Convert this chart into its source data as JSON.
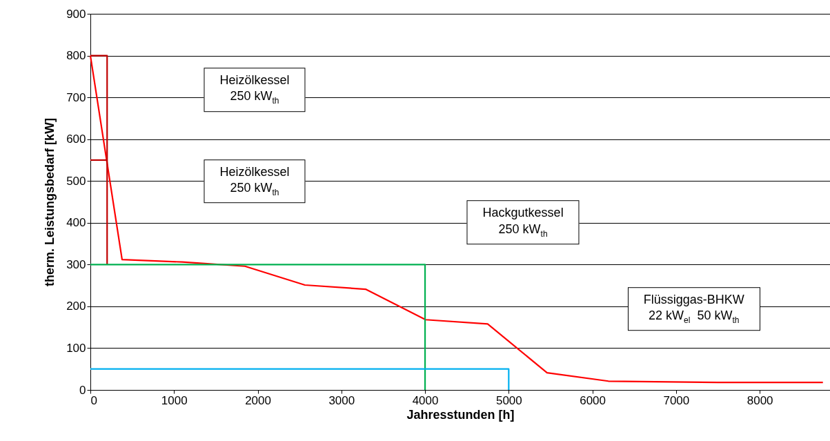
{
  "chart_data": {
    "type": "line",
    "xlabel": "Jahresstunden [h]",
    "ylabel": "therm. Leistungsbedarf [kW]",
    "xlim": [
      0,
      8840
    ],
    "ylim": [
      0,
      900
    ],
    "xticks": [
      0,
      1000,
      2000,
      3000,
      4000,
      5000,
      6000,
      7000,
      8000
    ],
    "yticks": [
      0,
      100,
      200,
      300,
      400,
      500,
      600,
      700,
      800,
      900
    ],
    "grid": "y",
    "series": [
      {
        "color": "#ff0000",
        "x": [
          0,
          379,
          1100,
          1847,
          2564,
          3289,
          4007,
          4748,
          5458,
          6191,
          7500,
          8755
        ],
        "values": [
          800,
          312,
          306,
          296,
          251,
          241,
          168,
          158,
          41,
          21,
          18,
          18
        ]
      },
      {
        "color": "#c00000",
        "x": [
          0,
          200,
          200
        ],
        "values": [
          800,
          800,
          300
        ]
      },
      {
        "color": "#c00000",
        "x": [
          0,
          200
        ],
        "values": [
          550,
          550
        ]
      },
      {
        "color": "#00b050",
        "x": [
          0,
          4000,
          4000
        ],
        "values": [
          300,
          300,
          0
        ]
      },
      {
        "color": "#00b0f0",
        "x": [
          0,
          5000,
          5000
        ],
        "values": [
          50,
          50,
          0
        ]
      }
    ],
    "annotations": [
      "Heizölkessel\n250 kW$_{th}$",
      "Heizölkessel\n250 kW$_{th}$",
      "Hackgutkessel\n250 kW$_{th}$",
      "Flüssiggas-BHKW\n22 kW$_{el}$  50 kW$_{th}$"
    ]
  }
}
